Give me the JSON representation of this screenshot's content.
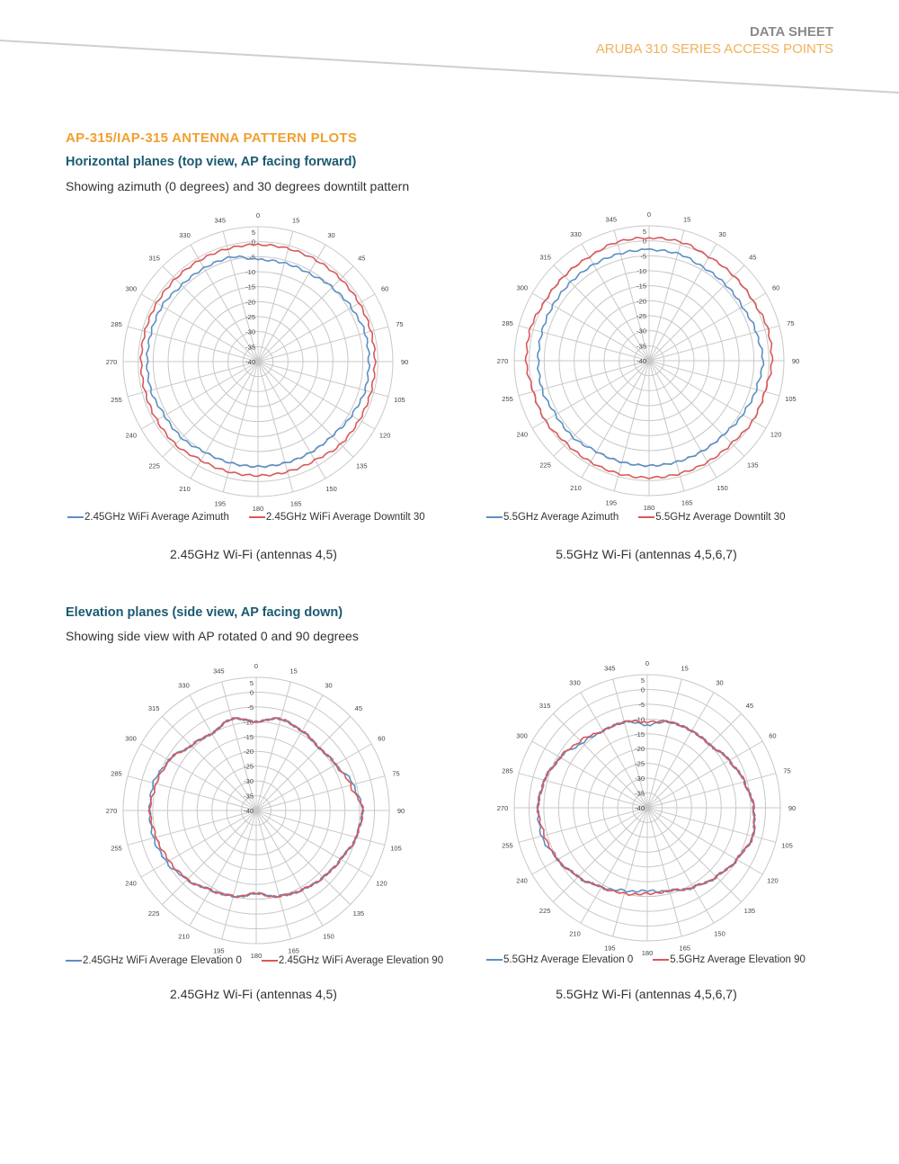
{
  "header": {
    "title": "DATA SHEET",
    "subtitle": "ARUBA 310 SERIES ACCESS POINTS"
  },
  "section_title": "AP-315/IAP-315 ANTENNA PATTERN PLOTS",
  "horizontal": {
    "heading": "Horizontal planes (top view, AP facing forward)",
    "description": "Showing azimuth (0 degrees) and 30 degrees downtilt pattern"
  },
  "elevation": {
    "heading": "Elevation planes (side view, AP facing down)",
    "description": "Showing side view with AP rotated 0 and 90 degrees"
  },
  "colors": {
    "blue": "#5b8fc4",
    "red": "#d9585a",
    "grid": "#c8c8c8"
  },
  "chart_data": [
    {
      "type": "polar",
      "caption": "2.45GHz Wi-Fi (antennas 4,5)",
      "angles": [
        0,
        15,
        30,
        45,
        60,
        75,
        90,
        105,
        120,
        135,
        150,
        165,
        180,
        195,
        210,
        225,
        240,
        255,
        270,
        285,
        300,
        315,
        330,
        345
      ],
      "rlim": [
        -40,
        5
      ],
      "r_ticks": [
        "5",
        "0",
        "-5",
        "-10",
        "-15",
        "-20",
        "-25",
        "-30",
        "-35",
        "-40"
      ],
      "series": [
        {
          "name": "2.45GHz WiFi Average Azimuth",
          "color": "#5b8fc4",
          "values": [
            -6,
            -6,
            -6,
            -5,
            -4,
            -3,
            -3,
            -3,
            -4,
            -5,
            -5,
            -5,
            -5,
            -5,
            -5,
            -4,
            -4,
            -3,
            -3,
            -3,
            -3,
            -4,
            -4,
            -4
          ]
        },
        {
          "name": "2.45GHz WiFi Average Downtilt 30",
          "color": "#d9585a",
          "values": [
            -1,
            -1,
            -1,
            -1,
            -1,
            -1,
            -1,
            -1,
            -1,
            -1,
            -2,
            -2,
            -2,
            -2,
            -2,
            -1,
            -1,
            -1,
            -1,
            -1,
            -1,
            -1,
            -1,
            -1
          ]
        }
      ]
    },
    {
      "type": "polar",
      "caption": "5.5GHz Wi-Fi (antennas 4,5,6,7)",
      "angles": [
        0,
        15,
        30,
        45,
        60,
        75,
        90,
        105,
        120,
        135,
        150,
        165,
        180,
        195,
        210,
        225,
        240,
        255,
        270,
        285,
        300,
        315,
        330,
        345
      ],
      "rlim": [
        -40,
        5
      ],
      "r_ticks": [
        "5",
        "0",
        "-5",
        "-10",
        "-15",
        "-20",
        "-25",
        "-30",
        "-35",
        "-40"
      ],
      "series": [
        {
          "name": "5.5GHz Average Azimuth",
          "color": "#5b8fc4",
          "values": [
            -3,
            -3,
            -4,
            -4,
            -4,
            -3,
            -2,
            -3,
            -4,
            -5,
            -5,
            -5,
            -5,
            -5,
            -5,
            -4,
            -4,
            -3,
            -3,
            -3,
            -3,
            -3,
            -3,
            -3
          ]
        },
        {
          "name": "5.5GHz Average Downtilt 30",
          "color": "#d9585a",
          "values": [
            1,
            1,
            0,
            0,
            0,
            1,
            1,
            0,
            0,
            -1,
            -1,
            -1,
            -1,
            -1,
            -1,
            -1,
            0,
            0,
            1,
            1,
            0,
            0,
            0,
            1
          ]
        }
      ]
    },
    {
      "type": "polar",
      "caption": "2.45GHz Wi-Fi (antennas 4,5)",
      "angles": [
        0,
        15,
        30,
        45,
        60,
        75,
        90,
        105,
        120,
        135,
        150,
        165,
        180,
        195,
        210,
        225,
        240,
        255,
        270,
        285,
        300,
        315,
        330,
        345
      ],
      "rlim": [
        -40,
        5
      ],
      "r_ticks": [
        "5",
        "0",
        "-5",
        "-10",
        "-15",
        "-20",
        "-25",
        "-30",
        "-35",
        "-40"
      ],
      "series": [
        {
          "name": "2.45GHz WiFi Average Elevation 0",
          "color": "#5b8fc4",
          "values": [
            -10,
            -8,
            -9,
            -10,
            -9,
            -6,
            -4,
            -5,
            -7,
            -8,
            -9,
            -10,
            -12,
            -10,
            -9,
            -7,
            -5,
            -4,
            -4,
            -4,
            -6,
            -9,
            -10,
            -8
          ]
        },
        {
          "name": "2.45GHz WiFi Average Elevation 90",
          "color": "#d9585a",
          "values": [
            -10,
            -8,
            -9,
            -10,
            -9,
            -7,
            -4,
            -5,
            -7,
            -8,
            -9,
            -10,
            -12,
            -10,
            -9,
            -7,
            -6,
            -5,
            -4,
            -5,
            -6,
            -9,
            -10,
            -8
          ]
        }
      ]
    },
    {
      "type": "polar",
      "caption": "5.5GHz Wi-Fi (antennas 4,5,6,7)",
      "angles": [
        0,
        15,
        30,
        45,
        60,
        75,
        90,
        105,
        120,
        135,
        150,
        165,
        180,
        195,
        210,
        225,
        240,
        255,
        270,
        285,
        300,
        315,
        330,
        345
      ],
      "rlim": [
        -40,
        5
      ],
      "r_ticks": [
        "5",
        "0",
        "-5",
        "-10",
        "-15",
        "-20",
        "-25",
        "-30",
        "-35",
        "-40"
      ],
      "series": [
        {
          "name": "5.5GHz Average Elevation 0",
          "color": "#5b8fc4",
          "values": [
            -12,
            -10,
            -10,
            -10,
            -8,
            -6,
            -4,
            -3,
            -5,
            -7,
            -9,
            -11,
            -12,
            -11,
            -9,
            -7,
            -5,
            -3,
            -3,
            -4,
            -6,
            -9,
            -10,
            -10
          ]
        },
        {
          "name": "5.5GHz Average Elevation 90",
          "color": "#d9585a",
          "values": [
            -11,
            -10,
            -10,
            -10,
            -8,
            -6,
            -4,
            -3,
            -5,
            -7,
            -9,
            -11,
            -11,
            -10,
            -9,
            -7,
            -5,
            -4,
            -3,
            -4,
            -6,
            -8,
            -10,
            -10
          ]
        }
      ]
    }
  ]
}
